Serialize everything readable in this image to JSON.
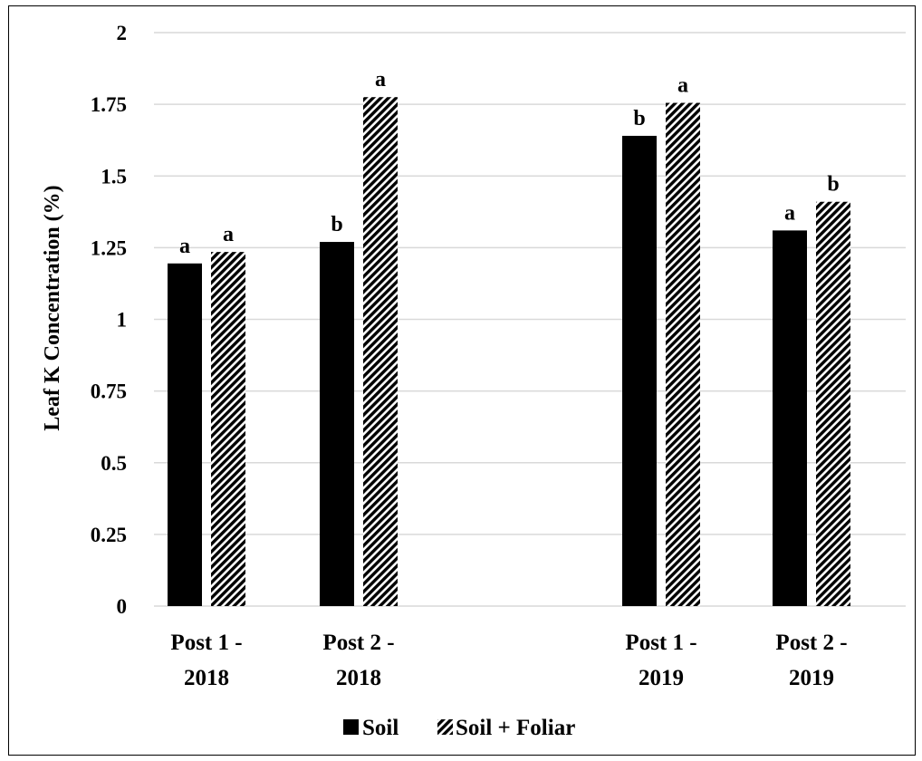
{
  "chart_data": {
    "type": "bar",
    "title": "",
    "xlabel": "",
    "ylabel": "Leaf K Concentration (%)",
    "ylim": [
      0,
      2
    ],
    "yticks": [
      0,
      0.25,
      0.5,
      0.75,
      1,
      1.25,
      1.5,
      1.75,
      2
    ],
    "ytick_labels": [
      "0",
      "0.25",
      "0.5",
      "0.75",
      "1",
      "1.25",
      "1.5",
      "1.75",
      "2"
    ],
    "categories": [
      {
        "line1": "Post 1 -",
        "line2": "2018"
      },
      {
        "line1": "Post 2 -",
        "line2": "2018"
      },
      {
        "line1": "",
        "line2": ""
      },
      {
        "line1": "Post 1 -",
        "line2": "2019"
      },
      {
        "line1": "Post 2 -",
        "line2": "2019"
      }
    ],
    "series": [
      {
        "name": "Soil",
        "fill": "solid",
        "color": "#000000",
        "values": [
          1.195,
          1.27,
          null,
          1.64,
          1.31
        ],
        "letters": [
          "a",
          "b",
          "",
          "b",
          "a"
        ]
      },
      {
        "name": "Soil + Foliar",
        "fill": "diagonal-hatch",
        "color": "#000000",
        "values": [
          1.235,
          1.775,
          null,
          1.755,
          1.41
        ],
        "letters": [
          "a",
          "a",
          "",
          "a",
          "b"
        ]
      }
    ],
    "grid": true,
    "legend": "bottom"
  }
}
